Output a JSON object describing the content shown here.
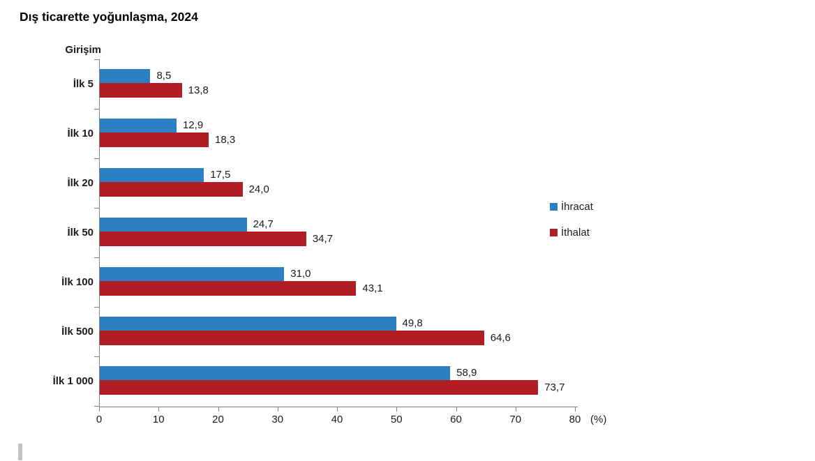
{
  "page": {
    "background": "#ffffff"
  },
  "header": {
    "title": "Dış ticarette yoğunlaşma, 2024"
  },
  "chart_data": {
    "type": "bar",
    "orientation": "horizontal",
    "title": "Dış ticarette yoğunlaşma, 2024",
    "y_axis_title": "Girişim",
    "x_unit_label": "(%)",
    "categories": [
      "İlk 5",
      "İlk 10",
      "İlk 20",
      "İlk 50",
      "İlk 100",
      "İlk 500",
      "İlk 1 000"
    ],
    "series": [
      {
        "name": "İhracat",
        "color": "#2b7fc2",
        "values": [
          8.5,
          12.9,
          17.5,
          24.7,
          31.0,
          49.8,
          58.9
        ],
        "labels": [
          "8,5",
          "12,9",
          "17,5",
          "24,7",
          "31,0",
          "49,8",
          "58,9"
        ]
      },
      {
        "name": "İthalat",
        "color": "#b01e24",
        "values": [
          13.8,
          18.3,
          24.0,
          34.7,
          43.1,
          64.6,
          73.7
        ],
        "labels": [
          "13,8",
          "18,3",
          "24,0",
          "34,7",
          "43,1",
          "64,6",
          "73,7"
        ]
      }
    ],
    "x_ticks": [
      0,
      10,
      20,
      30,
      40,
      50,
      60,
      70,
      80
    ],
    "x_tick_labels": [
      "0",
      "10",
      "20",
      "30",
      "40",
      "50",
      "60",
      "70",
      "80"
    ],
    "xlim": [
      0,
      80
    ],
    "grid": false,
    "legend_position": "right",
    "axis_color": "#7f7f7f"
  }
}
